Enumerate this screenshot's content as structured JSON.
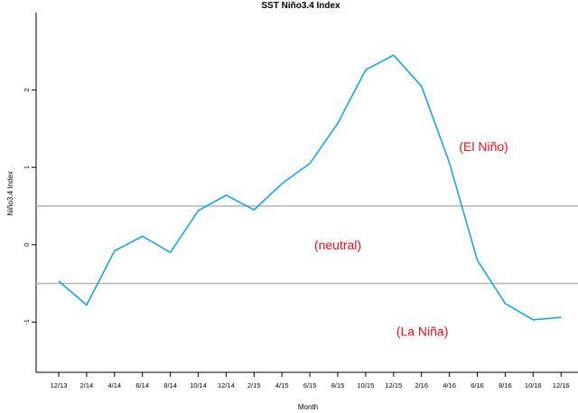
{
  "chart_data": {
    "type": "line",
    "title": "SST Niño3.4 Index",
    "xlabel": "Month",
    "ylabel": "Niño3.4 Index",
    "categories": [
      "12/13",
      "2/14",
      "4/14",
      "6/14",
      "8/14",
      "10/14",
      "12/14",
      "2/15",
      "4/15",
      "6/15",
      "8/15",
      "10/15",
      "12/15",
      "2/16",
      "4/16",
      "6/16",
      "8/16",
      "10/16",
      "12/16"
    ],
    "values": [
      -0.47,
      -0.78,
      -0.08,
      0.11,
      -0.1,
      0.44,
      0.64,
      0.45,
      0.79,
      1.05,
      1.57,
      2.26,
      2.45,
      2.05,
      1.06,
      -0.2,
      -0.76,
      -0.97,
      -0.94
    ],
    "ylim": [
      -1.65,
      3.0
    ],
    "yticks": [
      -1,
      0,
      1,
      2
    ],
    "reference_lines": [
      0.5,
      -0.5
    ],
    "line_color": "#1ca3e8",
    "reference_line_color": "#b3b3b3",
    "annotation_color": "#e8101a",
    "annotations": [
      {
        "text": "(El Niño)",
        "x": "4/16",
        "y": 1.27
      },
      {
        "text": "(neutral)",
        "x": "8/15",
        "y": 0.0
      },
      {
        "text": "(La Niña)",
        "x": "4/16",
        "y": -1.12
      }
    ],
    "grid": false,
    "legend": "none"
  }
}
